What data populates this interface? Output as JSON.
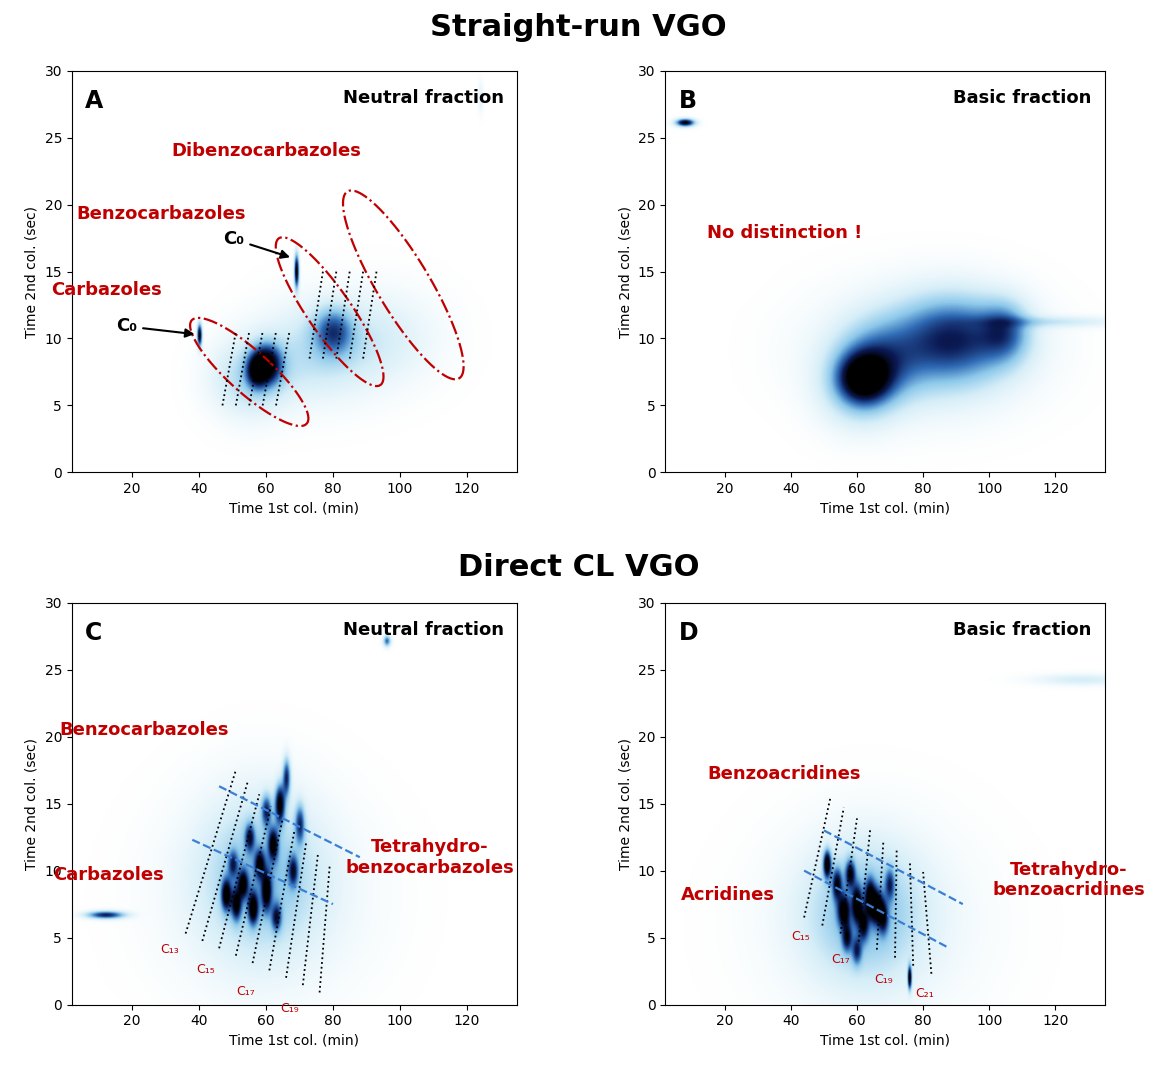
{
  "headers": [
    "Straight-run VGO",
    "Direct CL VGO"
  ],
  "chart_data": [
    {
      "type": "heatmap",
      "panel": "A",
      "title": "Neutral fraction",
      "x_label": "Time 1st col. (min)",
      "y_label": "Time 2nd col. (sec)",
      "xlim": [
        2,
        135
      ],
      "ylim": [
        0,
        30
      ],
      "xticks": [
        20,
        40,
        60,
        80,
        100,
        120
      ],
      "yticks": [
        0,
        5,
        10,
        15,
        20,
        25,
        30
      ],
      "spots": {
        "x": [
          40,
          69,
          60,
          57,
          80,
          75,
          95,
          55,
          124
        ],
        "y": [
          10.2,
          15,
          8,
          7.5,
          10.5,
          9,
          10,
          7,
          28
        ],
        "sx": [
          0.5,
          0.5,
          3,
          2,
          4,
          12,
          12,
          8,
          0.5
        ],
        "sy": [
          0.6,
          0.9,
          1.0,
          0.8,
          1.2,
          2.5,
          2.5,
          2,
          0.8
        ],
        "intensity": [
          1.0,
          1.0,
          0.9,
          0.6,
          0.5,
          0.25,
          0.15,
          0.3,
          0.15
        ]
      },
      "regions": [
        {
          "center": [
            55,
            7.5
          ],
          "axis1": [
            17,
            -3.9
          ],
          "axis2": [
            4.8,
            1.04
          ],
          "line_style": "dashdot",
          "color": "#c00000"
        },
        {
          "center": [
            79,
            12
          ],
          "axis1": [
            15,
            -5.5
          ],
          "axis2": [
            5.8,
            0.78
          ],
          "line_style": "dashdot",
          "color": "#c00000"
        },
        {
          "center": [
            101,
            14
          ],
          "axis1": [
            16.5,
            -7
          ],
          "axis2": [
            7.2,
            0.84
          ],
          "line_style": "dashdot",
          "color": "#c00000"
        }
      ],
      "lines": [
        {
          "x": [
            47,
            51
          ],
          "y": [
            5.0,
            10.5
          ],
          "line_style": "dotted",
          "color": "#000000"
        },
        {
          "x": [
            51,
            55
          ],
          "y": [
            5.0,
            10.5
          ],
          "line_style": "dotted",
          "color": "#000000"
        },
        {
          "x": [
            55,
            59
          ],
          "y": [
            5.0,
            10.5
          ],
          "line_style": "dotted",
          "color": "#000000"
        },
        {
          "x": [
            59,
            63
          ],
          "y": [
            5.0,
            10.5
          ],
          "line_style": "dotted",
          "color": "#000000"
        },
        {
          "x": [
            63,
            67
          ],
          "y": [
            5.0,
            10.5
          ],
          "line_style": "dotted",
          "color": "#000000"
        },
        {
          "x": [
            73,
            77
          ],
          "y": [
            8.5,
            15
          ],
          "line_style": "dotted",
          "color": "#000000"
        },
        {
          "x": [
            77,
            81
          ],
          "y": [
            8.5,
            15
          ],
          "line_style": "dotted",
          "color": "#000000"
        },
        {
          "x": [
            81,
            85
          ],
          "y": [
            8.5,
            15
          ],
          "line_style": "dotted",
          "color": "#000000"
        },
        {
          "x": [
            85,
            89
          ],
          "y": [
            8.5,
            15
          ],
          "line_style": "dotted",
          "color": "#000000"
        },
        {
          "x": [
            89,
            93
          ],
          "y": [
            8.5,
            15
          ],
          "line_style": "dotted",
          "color": "#000000"
        }
      ],
      "annotations": [
        {
          "text": "Carbazoles",
          "x": 12.4,
          "y": 13.6,
          "color": "#c00000"
        },
        {
          "text": "Benzocarbazoles",
          "x": 28.8,
          "y": 19.3,
          "color": "#c00000"
        },
        {
          "text": "Dibenzocarbazoles",
          "x": 60,
          "y": 24,
          "color": "#c00000"
        },
        {
          "text": "C₀",
          "x": 18.5,
          "y": 10.9,
          "color": "#000000",
          "arrow_to": [
            39.5,
            10.3
          ]
        },
        {
          "text": "C₀",
          "x": 50.5,
          "y": 17.4,
          "color": "#000000",
          "arrow_to": [
            68,
            16
          ]
        }
      ],
      "carbon_labels": []
    },
    {
      "type": "heatmap",
      "panel": "B",
      "title": "Basic fraction",
      "x_label": "Time 1st col. (min)",
      "y_label": "Time 2nd col. (sec)",
      "xlim": [
        2,
        135
      ],
      "ylim": [
        0,
        30
      ],
      "xticks": [
        20,
        40,
        60,
        80,
        100,
        120
      ],
      "yticks": [
        0,
        5,
        10,
        15,
        20,
        25,
        30
      ],
      "spots": {
        "x": [
          8,
          62,
          66,
          90,
          80,
          105,
          120,
          60
        ],
        "y": [
          26.1,
          7,
          8,
          10,
          9,
          10.5,
          11.2,
          6
        ],
        "sx": [
          2,
          5,
          8,
          12,
          20,
          5,
          15,
          8
        ],
        "sy": [
          0.2,
          1.2,
          2,
          2.2,
          3,
          1.5,
          0.3,
          2
        ],
        "intensity": [
          1.0,
          0.75,
          0.4,
          0.55,
          0.3,
          0.4,
          0.2,
          0.25
        ]
      },
      "regions": [],
      "lines": [],
      "annotations": [
        {
          "text": "No distinction !",
          "x": 38,
          "y": 17.9,
          "color": "#c00000"
        }
      ],
      "carbon_labels": []
    },
    {
      "type": "heatmap",
      "panel": "C",
      "title": "Neutral fraction",
      "x_label": "Time 1st col. (min)",
      "y_label": "Time 2nd col. (sec)",
      "xlim": [
        2,
        135
      ],
      "ylim": [
        0,
        30
      ],
      "xticks": [
        20,
        40,
        60,
        80,
        100,
        120
      ],
      "yticks": [
        0,
        5,
        10,
        15,
        20,
        25,
        30
      ],
      "spots": {
        "x": [
          12,
          96,
          48,
          51,
          53,
          56,
          58,
          60,
          62,
          64,
          66,
          63,
          68,
          70,
          55,
          60,
          50,
          58,
          60
        ],
        "y": [
          6.7,
          27.2,
          8.2,
          7.5,
          9,
          7.2,
          10.5,
          8.5,
          12,
          15,
          17,
          6.5,
          10,
          13.5,
          12.5,
          14.5,
          10.5,
          10,
          8
        ],
        "sx": [
          4,
          0.8,
          1,
          1,
          1,
          1,
          1,
          1,
          1,
          1,
          0.8,
          1,
          1,
          1,
          1,
          1,
          1,
          12,
          20
        ],
        "sy": [
          0.2,
          0.3,
          0.8,
          0.8,
          0.7,
          0.8,
          0.7,
          1,
          0.8,
          1,
          1,
          0.7,
          0.8,
          1,
          0.7,
          0.8,
          0.7,
          4,
          5
        ],
        "intensity": [
          0.8,
          0.6,
          0.9,
          0.8,
          0.8,
          0.9,
          0.7,
          0.8,
          0.8,
          0.9,
          0.7,
          0.6,
          0.6,
          0.6,
          0.6,
          0.6,
          0.5,
          0.3,
          0.15
        ]
      },
      "regions": [],
      "lines": [
        {
          "x": [
            36,
            51
          ],
          "y": [
            5.3,
            17.5
          ],
          "line_style": "dotted",
          "color": "#000000"
        },
        {
          "x": [
            41,
            54.5
          ],
          "y": [
            4.75,
            16.6
          ],
          "line_style": "dotted",
          "color": "#000000"
        },
        {
          "x": [
            46,
            58
          ],
          "y": [
            4.2,
            15.7
          ],
          "line_style": "dotted",
          "color": "#000000"
        },
        {
          "x": [
            51,
            61.5
          ],
          "y": [
            3.65,
            14.8
          ],
          "line_style": "dotted",
          "color": "#000000"
        },
        {
          "x": [
            56,
            65
          ],
          "y": [
            3.1,
            13.9
          ],
          "line_style": "dotted",
          "color": "#000000"
        },
        {
          "x": [
            61,
            68.5
          ],
          "y": [
            2.55,
            13.0
          ],
          "line_style": "dotted",
          "color": "#000000"
        },
        {
          "x": [
            66,
            72
          ],
          "y": [
            2.0,
            12.1
          ],
          "line_style": "dotted",
          "color": "#000000"
        },
        {
          "x": [
            71,
            75.5
          ],
          "y": [
            1.45,
            11.2
          ],
          "line_style": "dotted",
          "color": "#000000"
        },
        {
          "x": [
            76,
            79
          ],
          "y": [
            0.9,
            10.3
          ],
          "line_style": "dotted",
          "color": "#000000"
        },
        {
          "x": [
            46,
            88
          ],
          "y": [
            16.3,
            11
          ],
          "line_style": "dashed",
          "color": "#3a7fd5"
        },
        {
          "x": [
            38,
            80
          ],
          "y": [
            12.3,
            7.5
          ],
          "line_style": "dashed",
          "color": "#3a7fd5"
        }
      ],
      "annotations": [
        {
          "text": "Benzocarbazoles",
          "x": 23.7,
          "y": 20.5,
          "color": "#c00000"
        },
        {
          "text": "Carbazoles",
          "x": 13,
          "y": 9.7,
          "color": "#c00000"
        },
        {
          "text": "Tetrahydro-\nbenzocarbazoles",
          "x": 109,
          "y": 11,
          "color": "#c00000"
        }
      ],
      "carbon_labels": [
        {
          "text": "C₁₃",
          "x": 31.3,
          "y": 4.1,
          "color": "#c00000"
        },
        {
          "text": "C₁₅",
          "x": 41.9,
          "y": 2.6,
          "color": "#c00000"
        },
        {
          "text": "C₁₇",
          "x": 54,
          "y": 1,
          "color": "#c00000"
        },
        {
          "text": "C₁₉",
          "x": 67,
          "y": -0.3,
          "color": "#c00000"
        }
      ]
    },
    {
      "type": "heatmap",
      "panel": "D",
      "title": "Basic fraction",
      "x_label": "Time 1st col. (min)",
      "y_label": "Time 2nd col. (sec)",
      "xlim": [
        2,
        135
      ],
      "ylim": [
        0,
        30
      ],
      "xticks": [
        20,
        40,
        60,
        80,
        100,
        120
      ],
      "yticks": [
        0,
        5,
        10,
        15,
        20,
        25,
        30
      ],
      "spots": {
        "x": [
          51,
          54,
          56,
          58,
          60,
          62,
          64,
          66,
          68,
          57,
          60,
          70,
          76,
          62,
          65,
          128
        ],
        "y": [
          10.5,
          9,
          7,
          9.8,
          7.5,
          6,
          8,
          7.3,
          6.5,
          5,
          4,
          9,
          2,
          7,
          6,
          24.3
        ],
        "sx": [
          0.8,
          1,
          1.2,
          1,
          1,
          1,
          1,
          1.2,
          1,
          1,
          1,
          1,
          0.4,
          12,
          22,
          10
        ],
        "sy": [
          0.7,
          0.8,
          0.8,
          0.7,
          0.9,
          0.8,
          0.9,
          0.8,
          0.8,
          0.7,
          0.7,
          0.8,
          0.6,
          3.5,
          5,
          0.3
        ],
        "intensity": [
          1.0,
          0.7,
          0.8,
          0.7,
          0.8,
          0.6,
          0.8,
          0.9,
          0.6,
          0.6,
          0.5,
          0.5,
          1.0,
          0.35,
          0.12,
          0.2
        ]
      },
      "regions": [],
      "lines": [
        {
          "x": [
            44,
            52
          ],
          "y": [
            6.5,
            15.5
          ],
          "line_style": "dotted",
          "color": "#000000"
        },
        {
          "x": [
            49.5,
            56
          ],
          "y": [
            5.9,
            14.7
          ],
          "line_style": "dotted",
          "color": "#000000"
        },
        {
          "x": [
            55,
            60
          ],
          "y": [
            5.3,
            13.9
          ],
          "line_style": "dotted",
          "color": "#000000"
        },
        {
          "x": [
            60.5,
            64
          ],
          "y": [
            4.7,
            13.1
          ],
          "line_style": "dotted",
          "color": "#000000"
        },
        {
          "x": [
            66,
            68
          ],
          "y": [
            4.1,
            12.3
          ],
          "line_style": "dotted",
          "color": "#000000"
        },
        {
          "x": [
            71.5,
            72
          ],
          "y": [
            3.5,
            11.5
          ],
          "line_style": "dotted",
          "color": "#000000"
        },
        {
          "x": [
            77,
            76
          ],
          "y": [
            2.9,
            10.7
          ],
          "line_style": "dotted",
          "color": "#000000"
        },
        {
          "x": [
            82.5,
            80
          ],
          "y": [
            2.3,
            9.9
          ],
          "line_style": "dotted",
          "color": "#000000"
        },
        {
          "x": [
            50,
            92
          ],
          "y": [
            13,
            7.5
          ],
          "line_style": "dashed",
          "color": "#3a7fd5"
        },
        {
          "x": [
            44,
            88
          ],
          "y": [
            10,
            4.2
          ],
          "line_style": "dashed",
          "color": "#3a7fd5"
        }
      ],
      "annotations": [
        {
          "text": "Benzoacridines",
          "x": 38,
          "y": 17.2,
          "color": "#c00000"
        },
        {
          "text": "Acridines",
          "x": 21,
          "y": 8.2,
          "color": "#c00000"
        },
        {
          "text": "Tetrahydro-\nbenzoacridines",
          "x": 124,
          "y": 9.3,
          "color": "#c00000"
        }
      ],
      "carbon_labels": [
        {
          "text": "C₁₅",
          "x": 42.8,
          "y": 5.1,
          "color": "#c00000"
        },
        {
          "text": "C₁₇",
          "x": 55,
          "y": 3.4,
          "color": "#c00000"
        },
        {
          "text": "C₁₉",
          "x": 68,
          "y": 1.9,
          "color": "#c00000"
        },
        {
          "text": "C₂₁",
          "x": 80.6,
          "y": 0.8,
          "color": "#c00000"
        }
      ]
    }
  ]
}
